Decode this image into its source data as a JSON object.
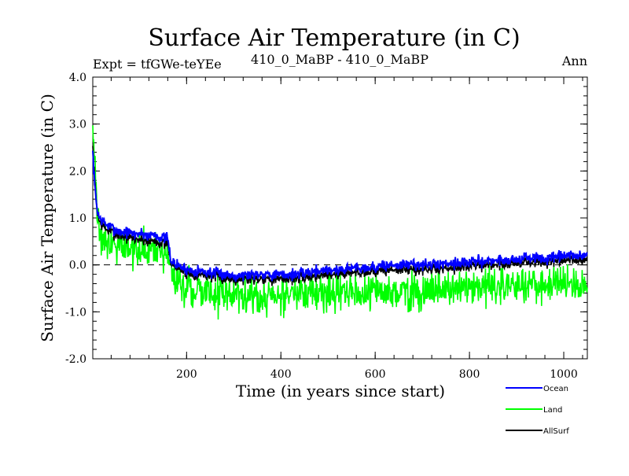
{
  "chart_data": {
    "type": "line",
    "title": "Surface Air Temperature (in C)",
    "subtitle_left": "Expt = tfGWe-teYEe",
    "subtitle_center": "410_0_MaBP - 410_0_MaBP",
    "subtitle_right": "Ann",
    "xlabel": "Time (in years since start)",
    "ylabel": "Surface Air Temperature (in C)",
    "xlim": [
      1,
      1050
    ],
    "ylim": [
      -2.0,
      4.0
    ],
    "xticks": [
      200,
      400,
      600,
      800,
      1000
    ],
    "xtick_labels": [
      "200",
      "400",
      "600",
      "800",
      "1000"
    ],
    "yticks": [
      -2.0,
      -1.0,
      0.0,
      1.0,
      2.0,
      3.0,
      4.0
    ],
    "ytick_labels": [
      "-2.0",
      "-1.0",
      "0.0",
      "1.0",
      "2.0",
      "3.0",
      "4.0"
    ],
    "reference_line": 0.0,
    "legend_position": "bottom-right",
    "series": [
      {
        "name": "Ocean",
        "color": "#0000ff",
        "x": [
          1,
          5,
          10,
          15,
          20,
          30,
          40,
          50,
          60,
          70,
          80,
          90,
          100,
          110,
          120,
          130,
          140,
          150,
          160,
          165,
          170,
          180,
          190,
          200,
          220,
          240,
          260,
          280,
          300,
          320,
          340,
          360,
          380,
          400,
          420,
          440,
          460,
          480,
          500,
          520,
          540,
          560,
          580,
          600,
          620,
          640,
          660,
          680,
          700,
          720,
          740,
          760,
          780,
          800,
          820,
          840,
          860,
          880,
          900,
          920,
          940,
          960,
          980,
          1000,
          1020,
          1040,
          1050
        ],
        "values": [
          2.4,
          1.7,
          1.2,
          1.0,
          0.95,
          0.85,
          0.8,
          0.75,
          0.7,
          0.7,
          0.68,
          0.65,
          0.68,
          0.65,
          0.62,
          0.66,
          0.6,
          0.58,
          0.55,
          0.2,
          0.05,
          0.0,
          -0.05,
          -0.1,
          -0.12,
          -0.15,
          -0.18,
          -0.2,
          -0.22,
          -0.22,
          -0.2,
          -0.18,
          -0.2,
          -0.22,
          -0.2,
          -0.2,
          -0.15,
          -0.12,
          -0.1,
          -0.12,
          -0.08,
          -0.05,
          -0.05,
          -0.05,
          -0.02,
          0.0,
          0.0,
          0.02,
          0.0,
          0.0,
          0.02,
          0.05,
          0.05,
          0.05,
          0.08,
          0.08,
          0.1,
          0.1,
          0.12,
          0.15,
          0.15,
          0.12,
          0.15,
          0.18,
          0.2,
          0.2,
          0.2
        ]
      },
      {
        "name": "Land",
        "color": "#00ff00",
        "x": [
          1,
          5,
          10,
          15,
          20,
          30,
          40,
          50,
          60,
          70,
          80,
          90,
          100,
          110,
          120,
          130,
          140,
          150,
          160,
          165,
          170,
          180,
          190,
          200,
          220,
          240,
          260,
          280,
          300,
          320,
          340,
          360,
          380,
          400,
          420,
          440,
          460,
          480,
          500,
          520,
          540,
          560,
          580,
          600,
          620,
          640,
          660,
          680,
          700,
          720,
          740,
          760,
          780,
          800,
          820,
          840,
          860,
          880,
          900,
          920,
          940,
          960,
          980,
          1000,
          1020,
          1040,
          1050
        ],
        "values": [
          3.2,
          2.2,
          1.2,
          0.7,
          0.6,
          0.55,
          0.5,
          0.45,
          0.42,
          0.4,
          0.38,
          0.35,
          0.3,
          0.28,
          0.3,
          0.25,
          0.22,
          0.25,
          0.2,
          0.05,
          -0.15,
          -0.3,
          -0.45,
          -0.5,
          -0.55,
          -0.58,
          -0.6,
          -0.65,
          -0.6,
          -0.62,
          -0.68,
          -0.7,
          -0.65,
          -0.68,
          -0.6,
          -0.65,
          -0.62,
          -0.6,
          -0.58,
          -0.55,
          -0.6,
          -0.62,
          -0.58,
          -0.55,
          -0.6,
          -0.55,
          -0.52,
          -0.58,
          -0.6,
          -0.55,
          -0.5,
          -0.52,
          -0.48,
          -0.5,
          -0.45,
          -0.48,
          -0.5,
          -0.45,
          -0.42,
          -0.45,
          -0.4,
          -0.45,
          -0.4,
          -0.35,
          -0.4,
          -0.4,
          -0.4
        ]
      },
      {
        "name": "AllSurf",
        "color": "#000000",
        "x": [
          1,
          5,
          10,
          15,
          20,
          30,
          40,
          50,
          60,
          70,
          80,
          90,
          100,
          110,
          120,
          130,
          140,
          150,
          160,
          165,
          170,
          180,
          190,
          200,
          220,
          240,
          260,
          280,
          300,
          320,
          340,
          360,
          380,
          400,
          420,
          440,
          460,
          480,
          500,
          520,
          540,
          560,
          580,
          600,
          620,
          640,
          660,
          680,
          700,
          720,
          740,
          760,
          780,
          800,
          820,
          840,
          860,
          880,
          900,
          920,
          940,
          960,
          980,
          1000,
          1020,
          1040,
          1050
        ],
        "values": [
          2.5,
          1.8,
          1.2,
          0.92,
          0.85,
          0.75,
          0.7,
          0.65,
          0.62,
          0.6,
          0.58,
          0.55,
          0.55,
          0.52,
          0.5,
          0.52,
          0.48,
          0.46,
          0.43,
          0.15,
          0.0,
          -0.05,
          -0.12,
          -0.18,
          -0.2,
          -0.22,
          -0.26,
          -0.28,
          -0.3,
          -0.3,
          -0.3,
          -0.28,
          -0.3,
          -0.32,
          -0.28,
          -0.3,
          -0.25,
          -0.22,
          -0.2,
          -0.2,
          -0.18,
          -0.16,
          -0.14,
          -0.14,
          -0.12,
          -0.1,
          -0.1,
          -0.1,
          -0.1,
          -0.1,
          -0.08,
          -0.05,
          -0.04,
          -0.04,
          0.0,
          0.0,
          0.0,
          0.02,
          0.05,
          0.05,
          0.06,
          0.05,
          0.06,
          0.08,
          0.1,
          0.1,
          0.1
        ]
      }
    ]
  }
}
